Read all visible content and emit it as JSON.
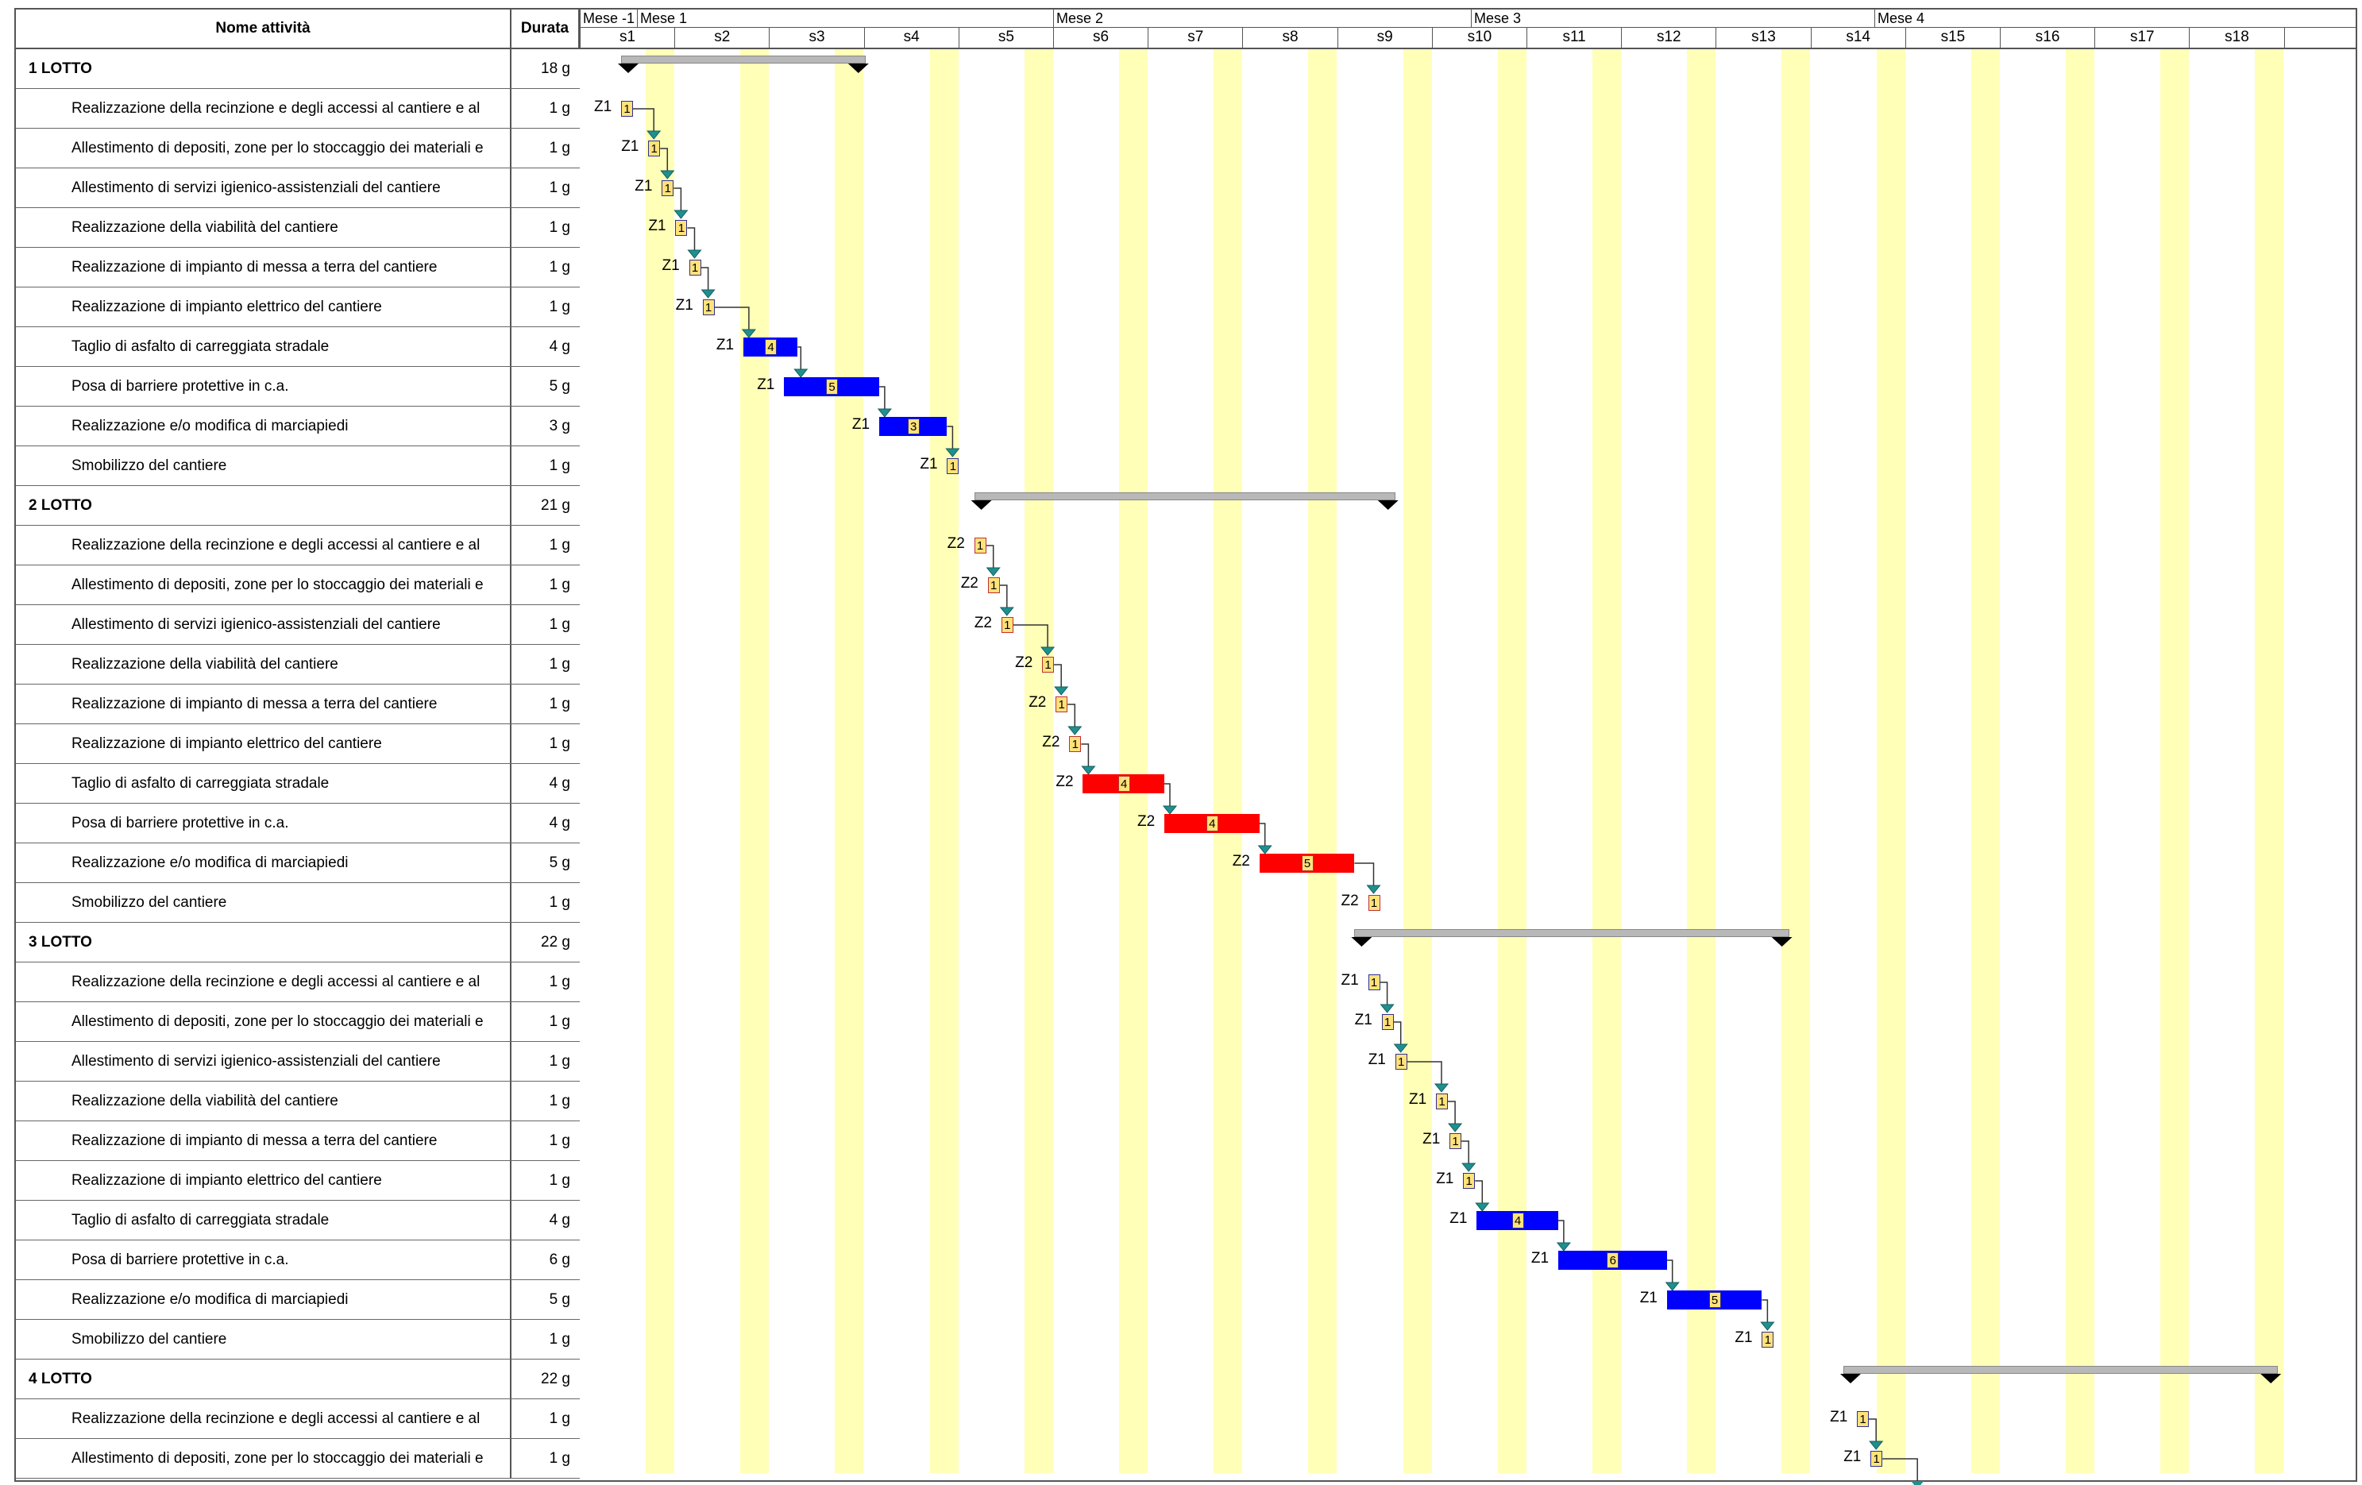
{
  "header": {
    "name_col": "Nome attività",
    "duration_col": "Durata"
  },
  "timeline": {
    "months": [
      "Mese -1",
      "Mese 1",
      "Mese 2",
      "Mese 3",
      "Mese 4"
    ],
    "weeks": [
      "s1",
      "s2",
      "s3",
      "s4",
      "s5",
      "s6",
      "s7",
      "s8",
      "s9",
      "s10",
      "s11",
      "s12",
      "s13",
      "s14",
      "s15",
      "s16",
      "s17",
      "s18"
    ]
  },
  "colors": {
    "zone1_bar": "#0000ff",
    "zone2_bar": "#ff0000",
    "summary_bar": "#b8b8b8",
    "weekend_stripe": "#ffffb8",
    "number_box": "#ffe27a",
    "arrow": "#1f8f8f"
  },
  "rows": [
    {
      "name": "1 LOTTO",
      "duration": "18 g",
      "type": "summary",
      "start": 1,
      "length": 18
    },
    {
      "name": "Realizzazione della recinzione e degli accessi al cantiere e al",
      "duration": "1 g",
      "type": "task",
      "start": 1,
      "length": 1,
      "zone": "Z1",
      "crew": "1"
    },
    {
      "name": "Allestimento di depositi, zone per lo stoccaggio dei materiali e",
      "duration": "1 g",
      "type": "task",
      "start": 3,
      "length": 1,
      "zone": "Z1",
      "crew": "1"
    },
    {
      "name": "Allestimento di servizi igienico-assistenziali del cantiere",
      "duration": "1 g",
      "type": "task",
      "start": 4,
      "length": 1,
      "zone": "Z1",
      "crew": "1"
    },
    {
      "name": "Realizzazione della viabilità del cantiere",
      "duration": "1 g",
      "type": "task",
      "start": 5,
      "length": 1,
      "zone": "Z1",
      "crew": "1"
    },
    {
      "name": "Realizzazione di impianto di messa a terra del cantiere",
      "duration": "1 g",
      "type": "task",
      "start": 6,
      "length": 1,
      "zone": "Z1",
      "crew": "1"
    },
    {
      "name": "Realizzazione di impianto elettrico del cantiere",
      "duration": "1 g",
      "type": "task",
      "start": 7,
      "length": 1,
      "zone": "Z1",
      "crew": "1"
    },
    {
      "name": "Taglio di asfalto di carreggiata stradale",
      "duration": "4 g",
      "type": "task",
      "start": 10,
      "length": 4,
      "zone": "Z1",
      "crew": "4"
    },
    {
      "name": "Posa di barriere protettive in c.a.",
      "duration": "5 g",
      "type": "task",
      "start": 13,
      "length": 7,
      "zone": "Z1",
      "crew": "5"
    },
    {
      "name": "Realizzazione e/o modifica di marciapiedi",
      "duration": "3 g",
      "type": "task",
      "start": 20,
      "length": 5,
      "zone": "Z1",
      "crew": "3"
    },
    {
      "name": "Smobilizzo del cantiere",
      "duration": "1 g",
      "type": "task",
      "start": 25,
      "length": 1,
      "zone": "Z1",
      "crew": "1"
    },
    {
      "name": "2 LOTTO",
      "duration": "21 g",
      "type": "summary",
      "start": 27,
      "length": 31
    },
    {
      "name": "Realizzazione della recinzione e degli accessi al cantiere e al",
      "duration": "1 g",
      "type": "task",
      "start": 27,
      "length": 1,
      "zone": "Z2",
      "crew": "1"
    },
    {
      "name": "Allestimento di depositi, zone per lo stoccaggio dei materiali e",
      "duration": "1 g",
      "type": "task",
      "start": 28,
      "length": 1,
      "zone": "Z2",
      "crew": "1"
    },
    {
      "name": "Allestimento di servizi igienico-assistenziali del cantiere",
      "duration": "1 g",
      "type": "task",
      "start": 29,
      "length": 1,
      "zone": "Z2",
      "crew": "1"
    },
    {
      "name": "Realizzazione della viabilità del cantiere",
      "duration": "1 g",
      "type": "task",
      "start": 32,
      "length": 1,
      "zone": "Z2",
      "crew": "1"
    },
    {
      "name": "Realizzazione di impianto di messa a terra del cantiere",
      "duration": "1 g",
      "type": "task",
      "start": 33,
      "length": 1,
      "zone": "Z2",
      "crew": "1"
    },
    {
      "name": "Realizzazione di impianto elettrico del cantiere",
      "duration": "1 g",
      "type": "task",
      "start": 34,
      "length": 1,
      "zone": "Z2",
      "crew": "1"
    },
    {
      "name": "Taglio di asfalto di carreggiata stradale",
      "duration": "4 g",
      "type": "task",
      "start": 35,
      "length": 6,
      "zone": "Z2",
      "crew": "4"
    },
    {
      "name": "Posa di barriere protettive in c.a.",
      "duration": "4 g",
      "type": "task",
      "start": 41,
      "length": 7,
      "zone": "Z2",
      "crew": "4"
    },
    {
      "name": "Realizzazione e/o modifica di marciapiedi",
      "duration": "5 g",
      "type": "task",
      "start": 48,
      "length": 7,
      "zone": "Z2",
      "crew": "5"
    },
    {
      "name": "Smobilizzo del cantiere",
      "duration": "1 g",
      "type": "task",
      "start": 56,
      "length": 1,
      "zone": "Z2",
      "crew": "1"
    },
    {
      "name": "3 LOTTO",
      "duration": "22 g",
      "type": "summary",
      "start": 55,
      "length": 32
    },
    {
      "name": "Realizzazione della recinzione e degli accessi al cantiere e al",
      "duration": "1 g",
      "type": "task",
      "start": 56,
      "length": 1,
      "zone": "Z1",
      "crew": "1"
    },
    {
      "name": "Allestimento di depositi, zone per lo stoccaggio dei materiali e",
      "duration": "1 g",
      "type": "task",
      "start": 57,
      "length": 1,
      "zone": "Z1",
      "crew": "1"
    },
    {
      "name": "Allestimento di servizi igienico-assistenziali del cantiere",
      "duration": "1 g",
      "type": "task",
      "start": 58,
      "length": 1,
      "zone": "Z1",
      "crew": "1"
    },
    {
      "name": "Realizzazione della viabilità del cantiere",
      "duration": "1 g",
      "type": "task",
      "start": 61,
      "length": 1,
      "zone": "Z1",
      "crew": "1"
    },
    {
      "name": "Realizzazione di impianto di messa a terra del cantiere",
      "duration": "1 g",
      "type": "task",
      "start": 62,
      "length": 1,
      "zone": "Z1",
      "crew": "1"
    },
    {
      "name": "Realizzazione di impianto elettrico del cantiere",
      "duration": "1 g",
      "type": "task",
      "start": 63,
      "length": 1,
      "zone": "Z1",
      "crew": "1"
    },
    {
      "name": "Taglio di asfalto di carreggiata stradale",
      "duration": "4 g",
      "type": "task",
      "start": 64,
      "length": 6,
      "zone": "Z1",
      "crew": "4"
    },
    {
      "name": "Posa di barriere protettive in c.a.",
      "duration": "6 g",
      "type": "task",
      "start": 70,
      "length": 8,
      "zone": "Z1",
      "crew": "6"
    },
    {
      "name": "Realizzazione e/o modifica di marciapiedi",
      "duration": "5 g",
      "type": "task",
      "start": 78,
      "length": 7,
      "zone": "Z1",
      "crew": "5"
    },
    {
      "name": "Smobilizzo del cantiere",
      "duration": "1 g",
      "type": "task",
      "start": 85,
      "length": 1,
      "zone": "Z1",
      "crew": "1"
    },
    {
      "name": "4 LOTTO",
      "duration": "22 g",
      "type": "summary",
      "start": 91,
      "length": 32
    },
    {
      "name": "Realizzazione della recinzione e degli accessi al cantiere e al",
      "duration": "1 g",
      "type": "task",
      "start": 92,
      "length": 1,
      "zone": "Z1",
      "crew": "1"
    },
    {
      "name": "Allestimento di depositi, zone per lo stoccaggio dei materiali e",
      "duration": "1 g",
      "type": "task",
      "start": 93,
      "length": 1,
      "zone": "Z1",
      "crew": "1"
    }
  ]
}
